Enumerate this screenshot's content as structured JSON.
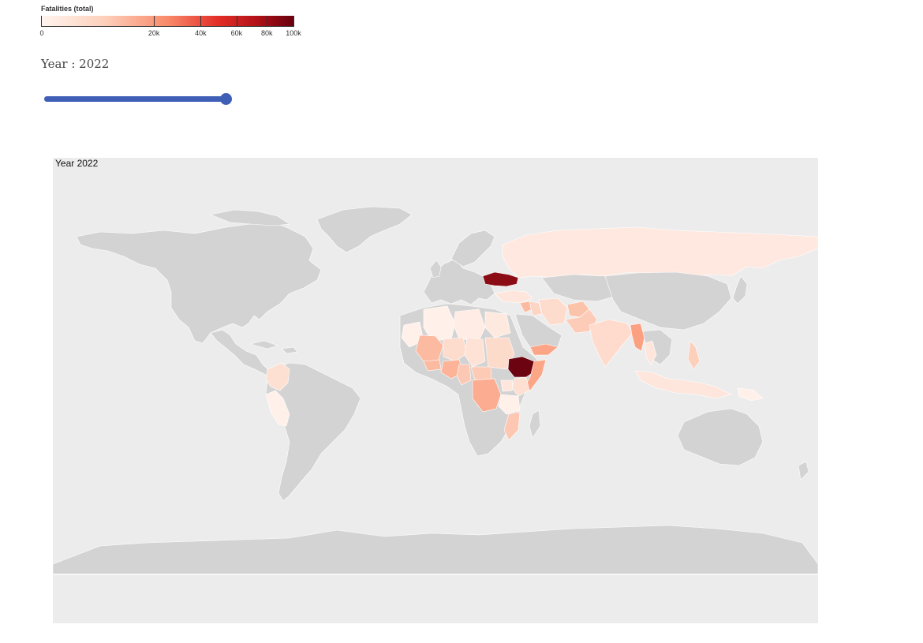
{
  "legend": {
    "title": "Fatalities (total)",
    "ticks": [
      {
        "label": "0",
        "value": 0
      },
      {
        "label": "20k",
        "value": 20000
      },
      {
        "label": "40k",
        "value": 40000
      },
      {
        "label": "60k",
        "value": 60000
      },
      {
        "label": "80k",
        "value": 80000
      },
      {
        "label": "100k",
        "value": 100000
      }
    ],
    "max": 100000,
    "scale": "sqrt",
    "colors": [
      "#fff5f0",
      "#fdd0bb",
      "#f98b6b",
      "#e32f27",
      "#b31218",
      "#67000d"
    ]
  },
  "year_control": {
    "label": "Year : 2022",
    "slider_level": 1.0
  },
  "map": {
    "title": "Year 2022",
    "no_data_color": "#d3d3d3",
    "background_color": "#ececec",
    "countries": [
      {
        "name": "Ethiopia",
        "fatalities": 95000
      },
      {
        "name": "Ukraine",
        "fatalities": 70000
      },
      {
        "name": "Myanmar",
        "fatalities": 5000
      },
      {
        "name": "Nigeria",
        "fatalities": 4000
      },
      {
        "name": "Mali",
        "fatalities": 3000
      },
      {
        "name": "Democratic Republic of the Congo",
        "fatalities": 3500
      },
      {
        "name": "Yemen",
        "fatalities": 4500
      },
      {
        "name": "Somalia",
        "fatalities": 2500
      },
      {
        "name": "Burkina Faso",
        "fatalities": 2000
      },
      {
        "name": "Afghanistan",
        "fatalities": 2000
      },
      {
        "name": "Sudan",
        "fatalities": 800
      },
      {
        "name": "Syria",
        "fatalities": 1500
      },
      {
        "name": "Mexico",
        "fatalities": 0
      },
      {
        "name": "Colombia",
        "fatalities": 400
      },
      {
        "name": "Peru",
        "fatalities": 200
      },
      {
        "name": "Russia",
        "fatalities": 300
      },
      {
        "name": "India",
        "fatalities": 600
      },
      {
        "name": "Pakistan",
        "fatalities": 1000
      },
      {
        "name": "Iraq",
        "fatalities": 700
      },
      {
        "name": "Cameroon",
        "fatalities": 900
      },
      {
        "name": "Niger",
        "fatalities": 400
      },
      {
        "name": "Chad",
        "fatalities": 300
      },
      {
        "name": "Algeria",
        "fatalities": 100
      },
      {
        "name": "Libya",
        "fatalities": 150
      },
      {
        "name": "Egypt",
        "fatalities": 200
      },
      {
        "name": "Central African Republic",
        "fatalities": 800
      },
      {
        "name": "Mozambique",
        "fatalities": 900
      },
      {
        "name": "Kenya",
        "fatalities": 300
      },
      {
        "name": "Philippines",
        "fatalities": 500
      },
      {
        "name": "Indonesia",
        "fatalities": 200
      },
      {
        "name": "Iran",
        "fatalities": 400
      },
      {
        "name": "Turkey",
        "fatalities": 300
      },
      {
        "name": "Mauritania",
        "fatalities": 100
      },
      {
        "name": "Uganda",
        "fatalities": 200
      },
      {
        "name": "Tanzania",
        "fatalities": 100
      },
      {
        "name": "Thailand",
        "fatalities": 150
      },
      {
        "name": "Papua New Guinea",
        "fatalities": 50
      }
    ]
  }
}
